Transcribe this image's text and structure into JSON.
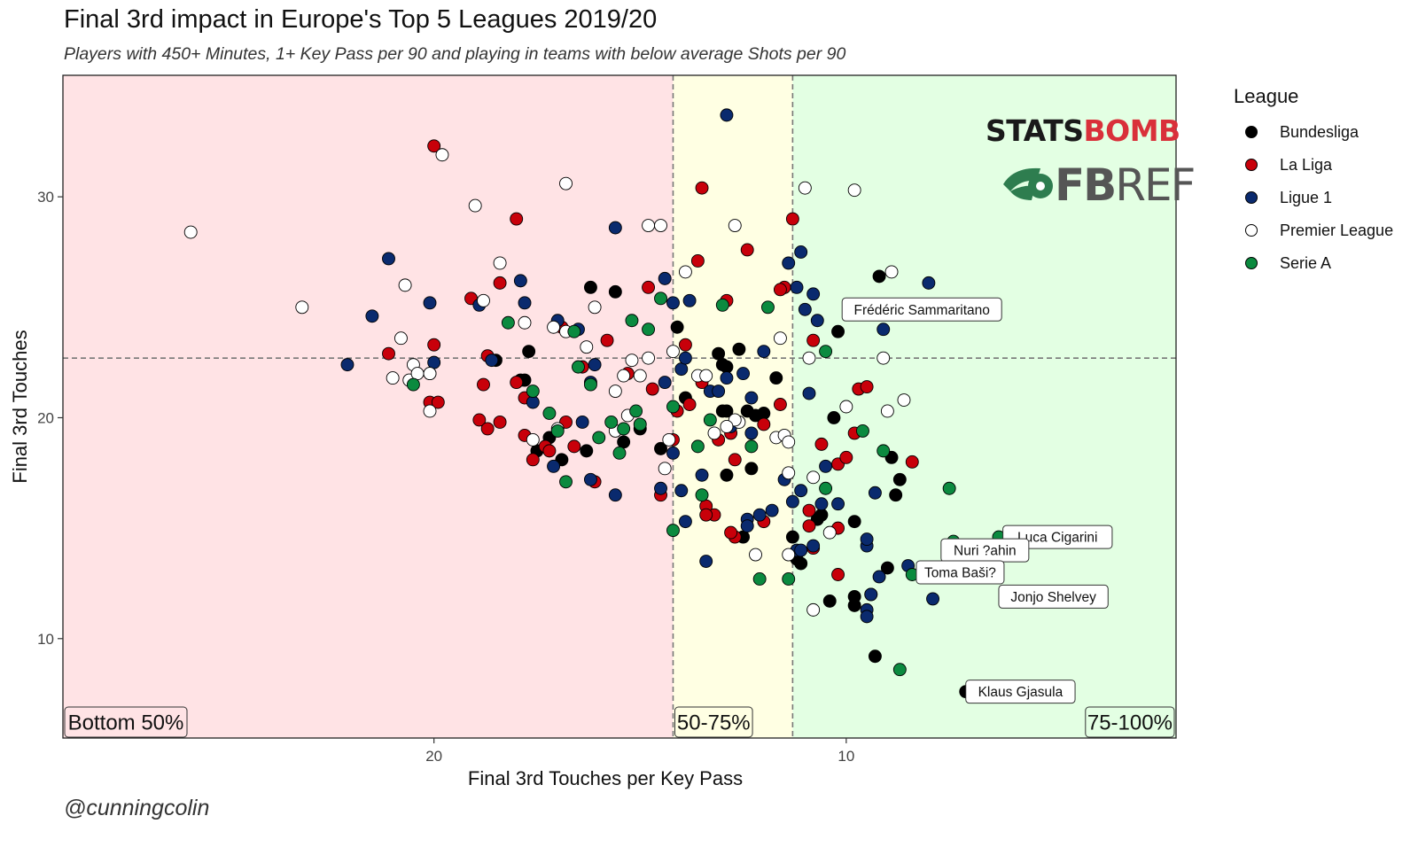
{
  "title": "Final 3rd impact in Europe's Top 5 Leagues 2019/20",
  "subtitle": "Players with 450+ Minutes, 1+ Key Pass per 90 and playing in teams with below average Shots per 90",
  "caption": "@cunningcolin",
  "logos": {
    "statsbomb_a": "STATS",
    "statsbomb_b": "BOMB",
    "fbref_a": "FB",
    "fbref_b": "REF"
  },
  "legend": {
    "title": "League",
    "items": [
      {
        "label": "Bundesliga",
        "color": "#000000"
      },
      {
        "label": "La Liga",
        "color": "#c8000a"
      },
      {
        "label": "Ligue 1",
        "color": "#0a2a6e"
      },
      {
        "label": "Premier League",
        "color": "#ffffff"
      },
      {
        "label": "Serie A",
        "color": "#0b8a3f"
      }
    ]
  },
  "chart_data": {
    "type": "scatter",
    "xlabel": "Final 3rd Touches per Key Pass",
    "ylabel": "Final 3rd Touches",
    "x_reversed": true,
    "xlim": [
      29,
      2
    ],
    "ylim": [
      5.5,
      35.5
    ],
    "x_ticks": [
      20,
      10
    ],
    "y_ticks": [
      10,
      20,
      30
    ],
    "grid": false,
    "legend_position": "right",
    "reference_lines": {
      "x": [
        14.2,
        11.3
      ],
      "y": 22.7
    },
    "zones": [
      {
        "label": "Bottom 50%",
        "x_from": 29,
        "x_to": 14.2,
        "color": "#ffe3e5"
      },
      {
        "label": "50-75%",
        "x_from": 14.2,
        "x_to": 11.3,
        "color": "#ffffe3"
      },
      {
        "label": "75-100%",
        "x_from": 11.3,
        "x_to": 2,
        "color": "#e3ffe3"
      }
    ],
    "annotations": [
      {
        "label": "Frédéric Sammaritano",
        "x": 10.1,
        "y": 24.9
      },
      {
        "label": "Luca Cigarini",
        "x": 6.2,
        "y": 14.6
      },
      {
        "label": "Nuri ?ahin",
        "x": 7.7,
        "y": 14.0
      },
      {
        "label": "Toma Baši?",
        "x": 8.3,
        "y": 13.0
      },
      {
        "label": "Jonjo Shelvey",
        "x": 6.3,
        "y": 11.9
      },
      {
        "label": "Klaus Gjasula",
        "x": 7.1,
        "y": 7.6
      }
    ],
    "series": [
      {
        "name": "Bundesliga",
        "color": "#000000",
        "points": [
          [
            9.2,
            26.4
          ],
          [
            10.2,
            23.9
          ],
          [
            13.1,
            22.9
          ],
          [
            12.6,
            23.1
          ],
          [
            12.9,
            22.3
          ],
          [
            14.1,
            24.1
          ],
          [
            16.2,
            25.9
          ],
          [
            15.6,
            25.7
          ],
          [
            17.7,
            23.0
          ],
          [
            17.8,
            21.7
          ],
          [
            18.5,
            22.6
          ],
          [
            13.9,
            20.9
          ],
          [
            12.2,
            20.1
          ],
          [
            12.4,
            20.3
          ],
          [
            12.0,
            20.2
          ],
          [
            11.7,
            21.8
          ],
          [
            10.3,
            20.0
          ],
          [
            8.9,
            18.2
          ],
          [
            8.7,
            17.2
          ],
          [
            8.8,
            16.5
          ],
          [
            9.8,
            15.3
          ],
          [
            11.3,
            14.6
          ],
          [
            11.2,
            13.6
          ],
          [
            11.1,
            13.4
          ],
          [
            12.5,
            14.6
          ],
          [
            12.3,
            17.7
          ],
          [
            12.9,
            17.4
          ],
          [
            10.6,
            15.6
          ],
          [
            10.7,
            15.4
          ],
          [
            10.4,
            11.7
          ],
          [
            9.8,
            11.5
          ],
          [
            9.8,
            11.9
          ],
          [
            9.0,
            13.2
          ],
          [
            7.2,
            14.0
          ],
          [
            9.3,
            9.2
          ],
          [
            7.1,
            7.6
          ],
          [
            15.0,
            19.5
          ],
          [
            15.4,
            18.9
          ],
          [
            17.2,
            19.1
          ],
          [
            17.5,
            18.5
          ],
          [
            16.9,
            18.1
          ],
          [
            17.9,
            21.7
          ],
          [
            16.3,
            18.5
          ],
          [
            14.5,
            18.6
          ],
          [
            13.0,
            20.3
          ],
          [
            12.9,
            20.3
          ],
          [
            13.0,
            22.4
          ]
        ]
      },
      {
        "name": "La Liga",
        "color": "#c8000a",
        "points": [
          [
            20.0,
            32.3
          ],
          [
            18.0,
            29.0
          ],
          [
            13.5,
            30.4
          ],
          [
            19.1,
            25.4
          ],
          [
            18.4,
            26.1
          ],
          [
            18.7,
            22.8
          ],
          [
            18.8,
            21.5
          ],
          [
            18.0,
            21.6
          ],
          [
            20.0,
            23.3
          ],
          [
            20.1,
            22.0
          ],
          [
            20.1,
            20.7
          ],
          [
            19.9,
            20.7
          ],
          [
            21.1,
            22.9
          ],
          [
            18.9,
            19.9
          ],
          [
            18.7,
            19.5
          ],
          [
            18.4,
            19.8
          ],
          [
            17.8,
            19.2
          ],
          [
            17.6,
            18.1
          ],
          [
            17.3,
            18.7
          ],
          [
            17.2,
            18.5
          ],
          [
            16.8,
            19.8
          ],
          [
            16.6,
            18.7
          ],
          [
            16.9,
            24.1
          ],
          [
            16.4,
            22.3
          ],
          [
            15.3,
            22.0
          ],
          [
            14.7,
            21.3
          ],
          [
            14.2,
            19.0
          ],
          [
            14.5,
            16.5
          ],
          [
            14.1,
            20.3
          ],
          [
            13.5,
            21.6
          ],
          [
            13.8,
            20.6
          ],
          [
            13.2,
            15.6
          ],
          [
            13.4,
            16.0
          ],
          [
            12.7,
            14.6
          ],
          [
            12.8,
            14.8
          ],
          [
            12.0,
            15.3
          ],
          [
            11.6,
            20.6
          ],
          [
            11.5,
            25.9
          ],
          [
            11.3,
            29.0
          ],
          [
            10.8,
            23.5
          ],
          [
            10.9,
            15.1
          ],
          [
            10.2,
            17.9
          ],
          [
            10.0,
            18.2
          ],
          [
            9.8,
            19.3
          ],
          [
            9.7,
            21.3
          ],
          [
            9.5,
            21.4
          ],
          [
            10.2,
            15.0
          ],
          [
            10.6,
            18.8
          ],
          [
            10.2,
            12.9
          ],
          [
            9.4,
            12.0
          ],
          [
            8.4,
            18.0
          ],
          [
            9.9,
            25.0
          ],
          [
            12.4,
            27.6
          ],
          [
            12.9,
            25.3
          ],
          [
            14.8,
            25.9
          ],
          [
            12.7,
            18.1
          ],
          [
            12.0,
            19.7
          ],
          [
            13.6,
            27.1
          ],
          [
            13.4,
            15.6
          ],
          [
            11.6,
            25.8
          ],
          [
            12.8,
            19.3
          ],
          [
            10.8,
            14.1
          ],
          [
            10.9,
            15.8
          ],
          [
            13.9,
            23.3
          ],
          [
            17.8,
            20.9
          ],
          [
            15.8,
            23.5
          ],
          [
            16.1,
            17.1
          ],
          [
            13.1,
            19.0
          ]
        ]
      },
      {
        "name": "Ligue 1",
        "color": "#0a2a6e",
        "points": [
          [
            12.9,
            33.7
          ],
          [
            15.6,
            28.6
          ],
          [
            13.8,
            25.3
          ],
          [
            14.4,
            26.3
          ],
          [
            14.2,
            25.2
          ],
          [
            11.4,
            27.0
          ],
          [
            11.1,
            27.5
          ],
          [
            10.8,
            25.6
          ],
          [
            11.2,
            25.9
          ],
          [
            8.0,
            26.1
          ],
          [
            9.1,
            24.0
          ],
          [
            11.0,
            24.9
          ],
          [
            10.7,
            24.4
          ],
          [
            21.1,
            27.2
          ],
          [
            20.1,
            25.2
          ],
          [
            21.5,
            24.6
          ],
          [
            18.9,
            25.1
          ],
          [
            17.9,
            26.2
          ],
          [
            17.8,
            25.2
          ],
          [
            17.0,
            24.4
          ],
          [
            16.5,
            24.0
          ],
          [
            18.6,
            22.6
          ],
          [
            20.0,
            22.5
          ],
          [
            22.1,
            22.4
          ],
          [
            12.0,
            23.0
          ],
          [
            12.9,
            21.8
          ],
          [
            14.4,
            21.6
          ],
          [
            14.0,
            22.2
          ],
          [
            13.3,
            21.2
          ],
          [
            12.8,
            19.6
          ],
          [
            12.3,
            19.3
          ],
          [
            11.5,
            17.2
          ],
          [
            11.1,
            16.7
          ],
          [
            11.2,
            14.0
          ],
          [
            10.8,
            14.2
          ],
          [
            10.6,
            16.1
          ],
          [
            10.5,
            17.8
          ],
          [
            9.3,
            16.6
          ],
          [
            9.5,
            14.2
          ],
          [
            9.2,
            12.8
          ],
          [
            9.4,
            12.0
          ],
          [
            9.5,
            11.3
          ],
          [
            9.5,
            11.0
          ],
          [
            8.5,
            13.3
          ],
          [
            7.9,
            11.8
          ],
          [
            6.9,
            14.0
          ],
          [
            13.9,
            15.3
          ],
          [
            14.0,
            16.7
          ],
          [
            13.5,
            17.4
          ],
          [
            13.4,
            13.5
          ],
          [
            12.4,
            15.4
          ],
          [
            12.4,
            15.1
          ],
          [
            12.1,
            15.6
          ],
          [
            11.1,
            14.0
          ],
          [
            15.6,
            16.5
          ],
          [
            16.2,
            17.2
          ],
          [
            17.1,
            17.8
          ],
          [
            17.6,
            20.7
          ],
          [
            16.2,
            21.6
          ],
          [
            14.2,
            18.4
          ],
          [
            14.5,
            16.8
          ],
          [
            16.4,
            19.8
          ],
          [
            16.1,
            22.4
          ],
          [
            13.9,
            22.7
          ],
          [
            12.5,
            22.0
          ],
          [
            13.1,
            21.2
          ],
          [
            12.3,
            20.9
          ],
          [
            10.9,
            21.1
          ],
          [
            11.8,
            15.8
          ],
          [
            11.3,
            16.2
          ],
          [
            9.5,
            14.5
          ],
          [
            10.2,
            16.1
          ]
        ]
      },
      {
        "name": "Premier League",
        "color": "#ffffff",
        "points": [
          [
            25.9,
            28.4
          ],
          [
            23.2,
            25.0
          ],
          [
            19.8,
            31.9
          ],
          [
            19.0,
            29.6
          ],
          [
            16.8,
            30.6
          ],
          [
            14.8,
            28.7
          ],
          [
            14.5,
            28.7
          ],
          [
            13.9,
            26.6
          ],
          [
            12.7,
            28.7
          ],
          [
            11.0,
            30.4
          ],
          [
            9.8,
            30.3
          ],
          [
            8.9,
            26.6
          ],
          [
            18.4,
            27.0
          ],
          [
            18.8,
            25.3
          ],
          [
            20.7,
            26.0
          ],
          [
            20.8,
            23.6
          ],
          [
            21.0,
            21.8
          ],
          [
            20.6,
            21.7
          ],
          [
            20.5,
            22.4
          ],
          [
            20.4,
            22.0
          ],
          [
            20.1,
            22.0
          ],
          [
            20.1,
            20.3
          ],
          [
            17.8,
            24.3
          ],
          [
            17.1,
            24.1
          ],
          [
            16.3,
            23.2
          ],
          [
            16.1,
            25.0
          ],
          [
            15.6,
            21.2
          ],
          [
            15.3,
            20.1
          ],
          [
            15.0,
            21.9
          ],
          [
            15.4,
            21.9
          ],
          [
            15.2,
            22.6
          ],
          [
            14.8,
            22.7
          ],
          [
            14.2,
            23.0
          ],
          [
            13.6,
            21.9
          ],
          [
            13.4,
            21.9
          ],
          [
            12.6,
            19.8
          ],
          [
            12.7,
            19.9
          ],
          [
            11.7,
            19.1
          ],
          [
            11.5,
            19.2
          ],
          [
            11.6,
            23.6
          ],
          [
            11.4,
            18.9
          ],
          [
            11.4,
            17.5
          ],
          [
            10.9,
            22.7
          ],
          [
            10.0,
            20.5
          ],
          [
            9.0,
            20.3
          ],
          [
            8.6,
            20.8
          ],
          [
            9.1,
            22.7
          ],
          [
            10.8,
            17.3
          ],
          [
            10.4,
            14.8
          ],
          [
            10.8,
            11.3
          ],
          [
            11.4,
            13.8
          ],
          [
            12.2,
            13.8
          ],
          [
            14.4,
            17.7
          ],
          [
            17.6,
            19.0
          ],
          [
            17.0,
            19.5
          ],
          [
            15.6,
            19.4
          ],
          [
            13.2,
            19.3
          ],
          [
            14.3,
            19.0
          ],
          [
            16.8,
            23.9
          ],
          [
            6.1,
            11.9
          ],
          [
            12.9,
            19.6
          ]
        ]
      },
      {
        "name": "Serie A",
        "color": "#0b8a3f",
        "points": [
          [
            14.5,
            25.4
          ],
          [
            13.0,
            25.1
          ],
          [
            11.9,
            25.0
          ],
          [
            10.5,
            23.0
          ],
          [
            18.2,
            24.3
          ],
          [
            16.6,
            23.9
          ],
          [
            15.2,
            24.4
          ],
          [
            14.8,
            24.0
          ],
          [
            16.5,
            22.3
          ],
          [
            17.6,
            21.2
          ],
          [
            17.2,
            20.2
          ],
          [
            16.2,
            21.5
          ],
          [
            15.1,
            20.3
          ],
          [
            15.4,
            19.5
          ],
          [
            14.2,
            20.5
          ],
          [
            13.3,
            19.9
          ],
          [
            13.6,
            18.7
          ],
          [
            12.3,
            18.7
          ],
          [
            16.0,
            19.1
          ],
          [
            15.5,
            18.4
          ],
          [
            17.0,
            19.4
          ],
          [
            16.8,
            17.1
          ],
          [
            13.5,
            16.5
          ],
          [
            14.2,
            14.9
          ],
          [
            10.5,
            16.8
          ],
          [
            9.6,
            19.4
          ],
          [
            9.1,
            18.5
          ],
          [
            7.5,
            16.8
          ],
          [
            7.4,
            14.4
          ],
          [
            6.3,
            14.6
          ],
          [
            8.4,
            12.9
          ],
          [
            8.7,
            8.6
          ],
          [
            11.4,
            12.7
          ],
          [
            12.1,
            12.7
          ],
          [
            20.5,
            21.5
          ],
          [
            15.7,
            19.8
          ],
          [
            15.0,
            19.7
          ]
        ]
      }
    ]
  }
}
